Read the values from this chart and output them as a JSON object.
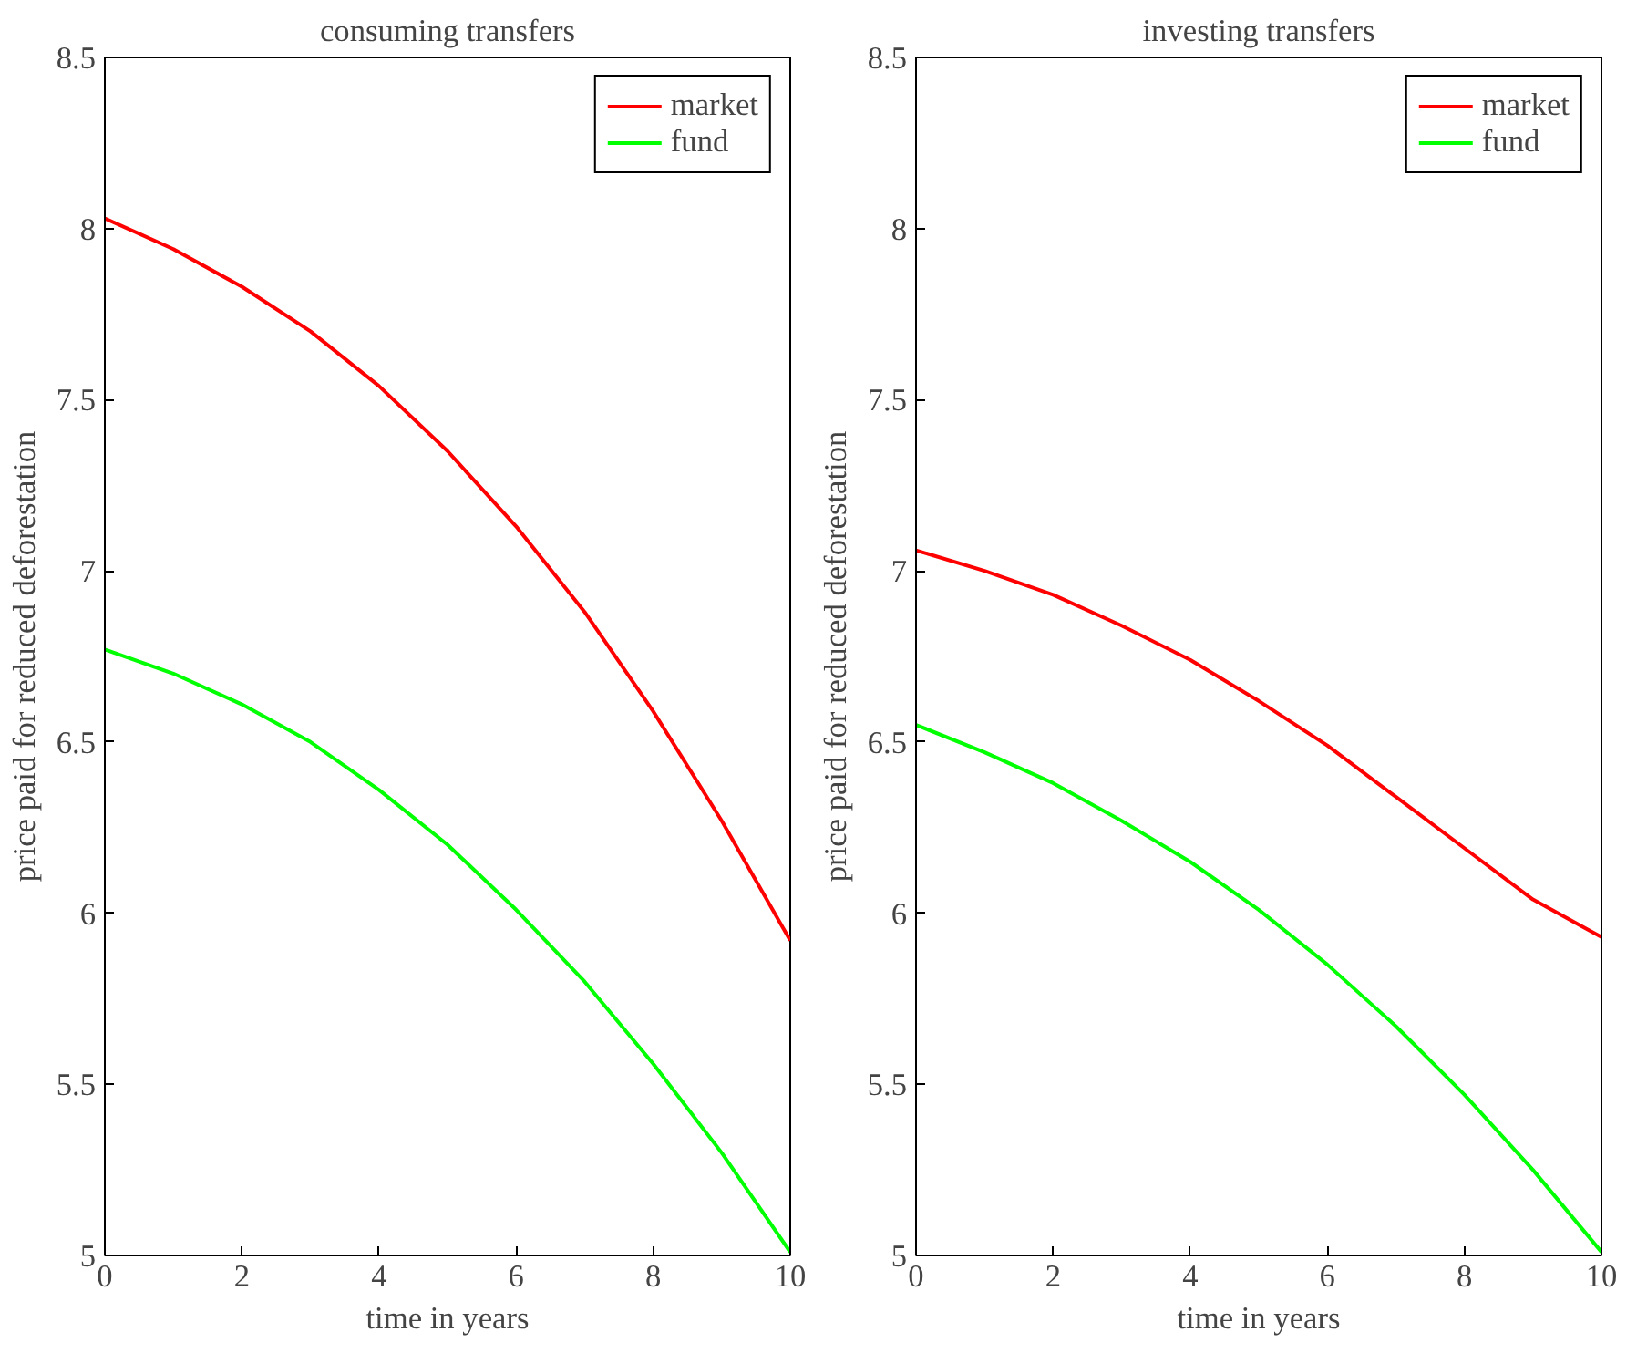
{
  "chart_data": [
    {
      "type": "line",
      "title": "consuming transfers",
      "xlabel": "time in years",
      "ylabel": "price paid for reduced deforestation",
      "x": [
        0,
        1,
        2,
        3,
        4,
        5,
        6,
        7,
        8,
        9,
        10
      ],
      "xlim": [
        0,
        10
      ],
      "xticks": [
        0,
        2,
        4,
        6,
        8,
        10
      ],
      "ylim": [
        5,
        8.5
      ],
      "yticks": [
        5,
        5.5,
        6,
        6.5,
        7,
        7.5,
        8,
        8.5
      ],
      "grid": false,
      "legend": "top right",
      "marker": "none",
      "line_style": "solid",
      "series": [
        {
          "name": "market",
          "color": "#ff0000",
          "values": [
            8.03,
            7.94,
            7.83,
            7.7,
            7.54,
            7.35,
            7.13,
            6.88,
            6.59,
            6.27,
            5.92
          ]
        },
        {
          "name": "fund",
          "color": "#00ff00",
          "values": [
            6.77,
            6.7,
            6.61,
            6.5,
            6.36,
            6.2,
            6.01,
            5.8,
            5.56,
            5.3,
            5.01
          ]
        }
      ]
    },
    {
      "type": "line",
      "title": "investing transfers",
      "xlabel": "time in years",
      "ylabel": "price paid for reduced deforestation",
      "x": [
        0,
        1,
        2,
        3,
        4,
        5,
        6,
        7,
        8,
        9,
        10
      ],
      "xlim": [
        0,
        10
      ],
      "xticks": [
        0,
        2,
        4,
        6,
        8,
        10
      ],
      "ylim": [
        5,
        8.5
      ],
      "yticks": [
        5,
        5.5,
        6,
        6.5,
        7,
        7.5,
        8,
        8.5
      ],
      "grid": false,
      "legend": "top right",
      "marker": "none",
      "line_style": "solid",
      "series": [
        {
          "name": "market",
          "color": "#ff0000",
          "values": [
            7.06,
            7.0,
            6.93,
            6.84,
            6.74,
            6.62,
            6.49,
            6.34,
            6.19,
            6.04,
            5.93
          ]
        },
        {
          "name": "fund",
          "color": "#00ff00",
          "values": [
            6.55,
            6.47,
            6.38,
            6.27,
            6.15,
            6.01,
            5.85,
            5.67,
            5.47,
            5.25,
            5.01
          ]
        }
      ]
    }
  ]
}
